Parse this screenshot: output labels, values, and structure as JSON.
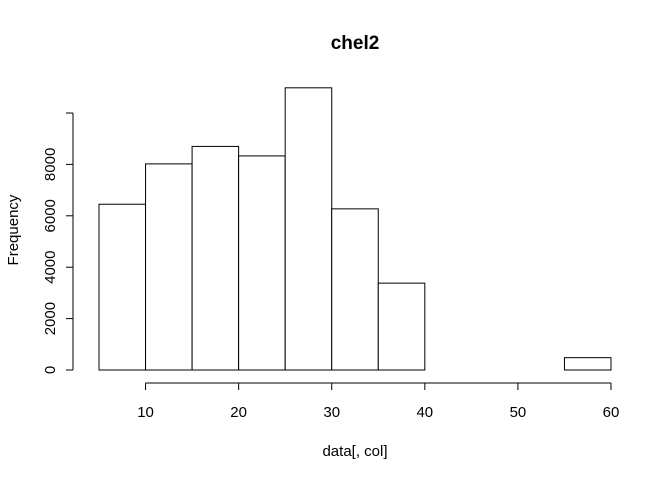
{
  "chart_data": {
    "type": "bar",
    "title": "chel2",
    "xlabel": "data[, col]",
    "ylabel": "Frequency",
    "bins": [
      {
        "x0": 5,
        "x1": 10,
        "count": 6450
      },
      {
        "x0": 10,
        "x1": 15,
        "count": 8020
      },
      {
        "x0": 15,
        "x1": 20,
        "count": 8700
      },
      {
        "x0": 20,
        "x1": 25,
        "count": 8330
      },
      {
        "x0": 25,
        "x1": 30,
        "count": 10980
      },
      {
        "x0": 30,
        "x1": 35,
        "count": 6270
      },
      {
        "x0": 35,
        "x1": 40,
        "count": 3380
      },
      {
        "x0": 40,
        "x1": 45,
        "count": 0
      },
      {
        "x0": 45,
        "x1": 50,
        "count": 0
      },
      {
        "x0": 50,
        "x1": 55,
        "count": 0
      },
      {
        "x0": 55,
        "x1": 60,
        "count": 480
      }
    ],
    "xticks": [
      10,
      20,
      30,
      40,
      50,
      60
    ],
    "yticks": [
      0,
      2000,
      4000,
      6000,
      8000,
      10000
    ],
    "ytick_labels": [
      "0",
      "2000",
      "4000",
      "6000",
      "8000",
      ""
    ],
    "xlim": [
      5,
      60
    ],
    "ylim": [
      0,
      10000
    ],
    "grid": false,
    "legend": "none"
  }
}
